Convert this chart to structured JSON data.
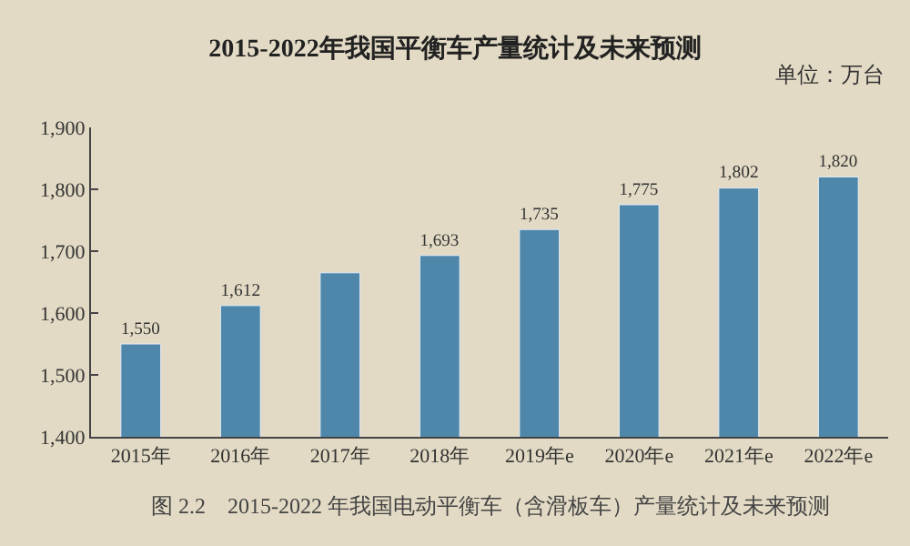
{
  "chart_data": {
    "type": "bar",
    "title": "2015-2022年我国平衡车产量统计及未来预测",
    "subtitle": "单位：万台",
    "categories": [
      "2015年",
      "2016年",
      "2017年",
      "2018年",
      "2019年e",
      "2020年e",
      "2021年e",
      "2022年e"
    ],
    "values": [
      1550,
      1612,
      1665,
      1693,
      1735,
      1775,
      1802,
      1820
    ],
    "value_labels": [
      "1,550",
      "1,612",
      null,
      "1,693",
      "1,735",
      "1,775",
      "1,802",
      "1,820"
    ],
    "color": "#4f87ab",
    "ylim": [
      1400,
      1900
    ],
    "yticks": [
      {
        "value": 1400,
        "label": "1,400"
      },
      {
        "value": 1500,
        "label": "1,500"
      },
      {
        "value": 1600,
        "label": "1,600"
      },
      {
        "value": 1700,
        "label": "1,700"
      },
      {
        "value": 1800,
        "label": "1,800"
      },
      {
        "value": 1900,
        "label": "1,900"
      }
    ],
    "grid": false,
    "annotations": [
      "图 2.2　2015-2022 年我国电动平衡车（含滑板车）产量统计及未来预测"
    ]
  }
}
